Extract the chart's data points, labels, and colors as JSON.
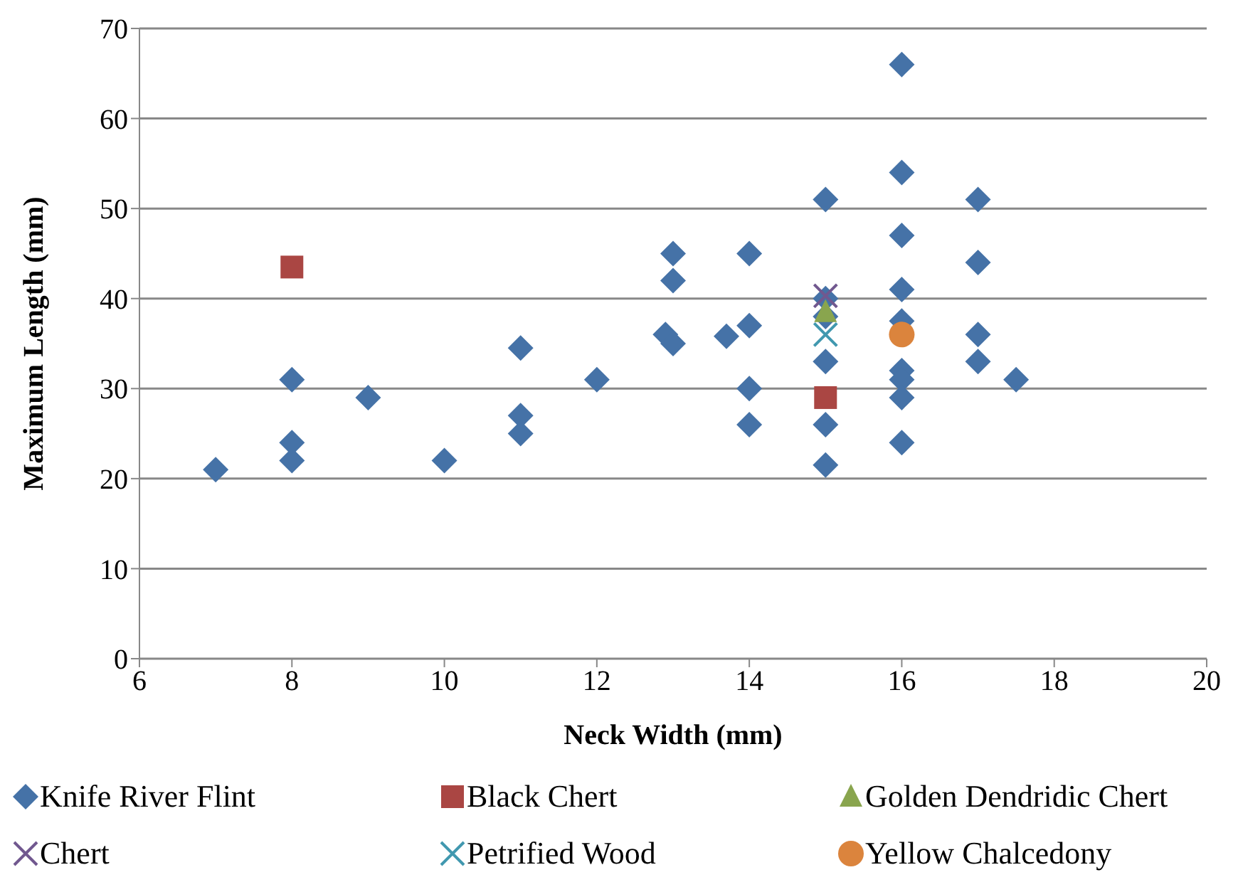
{
  "chart_data": {
    "type": "scatter",
    "xlabel": "Neck Width  (mm)",
    "ylabel": "Maximum Length (mm)",
    "xlim": [
      6,
      20
    ],
    "xticks": [
      6,
      8,
      10,
      12,
      14,
      16,
      18,
      20
    ],
    "ylim": [
      0,
      70
    ],
    "yticks": [
      0,
      10,
      20,
      30,
      40,
      50,
      60,
      70
    ],
    "grid": "y",
    "legend": "bottom",
    "series": [
      {
        "name": "Knife River Flint",
        "color": "#4572a7",
        "marker": "diamond",
        "x": [
          7,
          8,
          8,
          8,
          9,
          10,
          11,
          11,
          11,
          12,
          12.9,
          13,
          13,
          13,
          13.7,
          14,
          14,
          14,
          14,
          15,
          15,
          15,
          15,
          15,
          15,
          16,
          16,
          16,
          16,
          16,
          16,
          16,
          16,
          16,
          17,
          17,
          17,
          17,
          17.5
        ],
        "values": [
          21,
          31,
          24,
          22,
          29,
          22,
          34.5,
          27,
          25,
          31,
          36,
          35,
          45,
          42,
          35.8,
          45,
          37,
          30,
          26,
          51,
          40,
          38,
          33,
          26,
          21.5,
          66,
          54,
          47,
          41,
          37.5,
          32,
          31,
          29,
          24,
          51,
          44,
          36,
          33,
          31
        ]
      },
      {
        "name": "Black Chert",
        "color": "#aa4643",
        "marker": "square",
        "x": [
          8,
          15
        ],
        "values": [
          43.5,
          29
        ]
      },
      {
        "name": "Golden Dendridic Chert",
        "color": "#89a54e",
        "marker": "triangle",
        "x": [
          15
        ],
        "values": [
          38.5
        ]
      },
      {
        "name": "Chert",
        "color": "#71588f",
        "marker": "cross",
        "x": [
          15
        ],
        "values": [
          40.3
        ]
      },
      {
        "name": "Petrified Wood",
        "color": "#4198af",
        "marker": "cross",
        "x": [
          15
        ],
        "values": [
          36
        ]
      },
      {
        "name": "Yellow Chalcedony",
        "color": "#db843d",
        "marker": "circle",
        "x": [
          16
        ],
        "values": [
          36
        ]
      }
    ]
  }
}
